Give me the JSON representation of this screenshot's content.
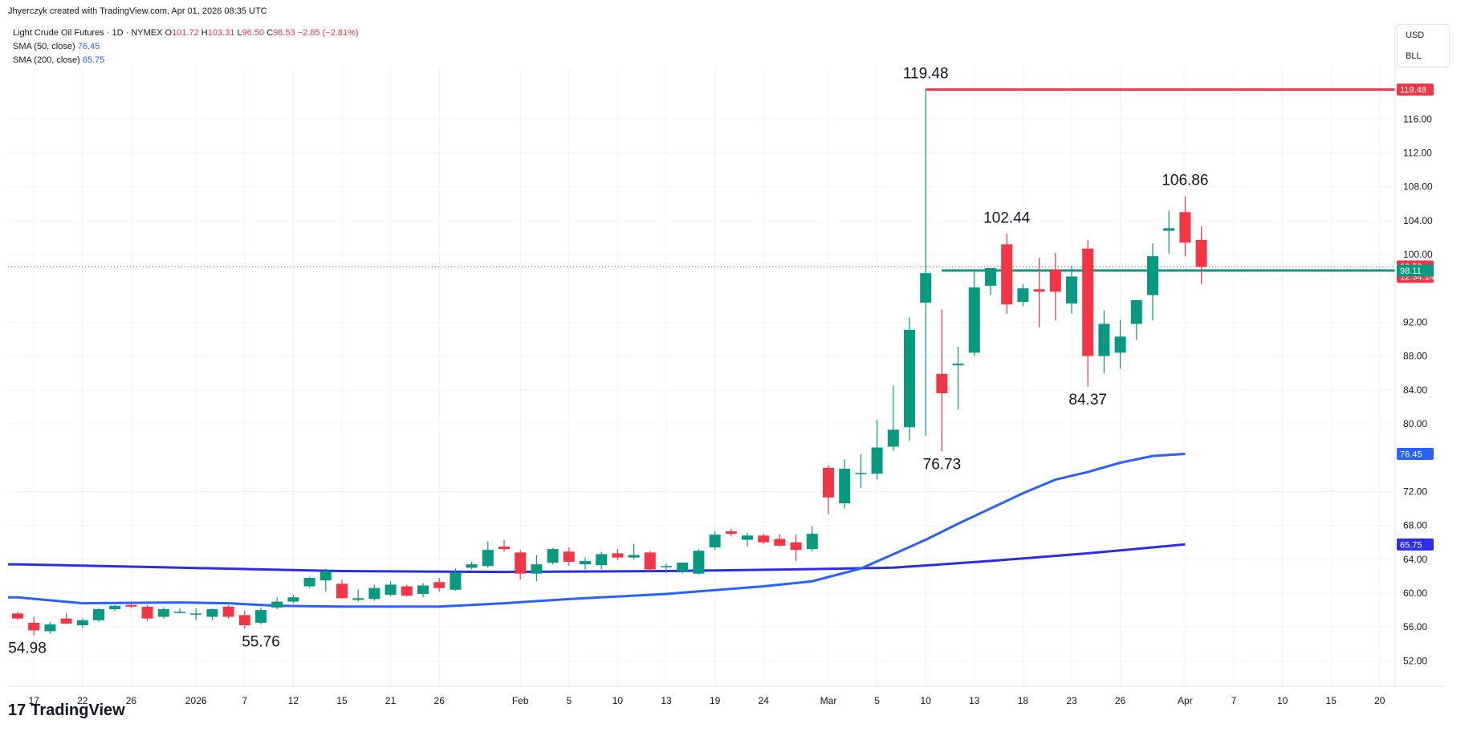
{
  "header": {
    "created": "Jhyerczyk created with TradingView.com, Apr 01, 2026 08:35 UTC"
  },
  "legend": {
    "symbol": "Light Crude Oil Futures · 1D · NYMEX",
    "o_label": "O",
    "o": "101.72",
    "h_label": "H",
    "h": "103.31",
    "l_label": "L",
    "l": "96.50",
    "c_label": "C",
    "c": "98.53",
    "change": "−2.85 (−2.81%)",
    "sma50_label": "SMA (50, close)",
    "sma50": "76.45",
    "sma200_label": "SMA (200, close)",
    "sma200": "65.75"
  },
  "currency": {
    "usd": "USD",
    "unit": "BLL"
  },
  "brand": {
    "logo": "17",
    "name": "TradingView"
  },
  "colors": {
    "up": "#089981",
    "down": "#f23645",
    "sma50": "#2962ff",
    "sma200": "#2b2ee8",
    "grid": "#f0f3fa"
  },
  "chart_data": {
    "type": "candlestick",
    "ylim": [
      49,
      122
    ],
    "y_ticks": [
      "116.00",
      "112.00",
      "108.00",
      "104.00",
      "100.00",
      "92.00",
      "88.00",
      "84.00",
      "80.00",
      "72.00",
      "68.00",
      "64.00",
      "60.00",
      "56.00",
      "52.00"
    ],
    "x_ticks": [
      {
        "label": "17",
        "i": 1
      },
      {
        "label": "22",
        "i": 4
      },
      {
        "label": "26",
        "i": 7
      },
      {
        "label": "2026",
        "i": 11
      },
      {
        "label": "7",
        "i": 14
      },
      {
        "label": "12",
        "i": 17
      },
      {
        "label": "15",
        "i": 20
      },
      {
        "label": "21",
        "i": 23
      },
      {
        "label": "26",
        "i": 26
      },
      {
        "label": "Feb",
        "i": 31
      },
      {
        "label": "5",
        "i": 34
      },
      {
        "label": "10",
        "i": 37
      },
      {
        "label": "13",
        "i": 40
      },
      {
        "label": "19",
        "i": 43
      },
      {
        "label": "24",
        "i": 46
      },
      {
        "label": "Mar",
        "i": 50
      },
      {
        "label": "5",
        "i": 53
      },
      {
        "label": "10",
        "i": 56
      },
      {
        "label": "13",
        "i": 59
      },
      {
        "label": "18",
        "i": 62
      },
      {
        "label": "23",
        "i": 65
      },
      {
        "label": "26",
        "i": 68
      },
      {
        "label": "Apr",
        "i": 72
      },
      {
        "label": "7",
        "i": 75
      },
      {
        "label": "10",
        "i": 78
      },
      {
        "label": "15",
        "i": 81
      },
      {
        "label": "20",
        "i": 84
      }
    ],
    "candles": [
      [
        57.6,
        57.8,
        56.8,
        57.0
      ],
      [
        56.5,
        57.2,
        55.0,
        55.6
      ],
      [
        55.5,
        56.6,
        55.2,
        56.3
      ],
      [
        57.0,
        57.6,
        56.4,
        56.4
      ],
      [
        56.2,
        57.0,
        55.9,
        56.8
      ],
      [
        56.8,
        58.2,
        56.6,
        58.1
      ],
      [
        58.1,
        58.6,
        57.9,
        58.5
      ],
      [
        58.6,
        58.8,
        58.2,
        58.4
      ],
      [
        58.4,
        58.6,
        56.7,
        57.0
      ],
      [
        57.2,
        58.3,
        57.0,
        58.1
      ],
      [
        57.8,
        58.2,
        57.6,
        57.8
      ],
      [
        57.6,
        58.2,
        56.8,
        57.6
      ],
      [
        57.2,
        58.2,
        56.8,
        58.1
      ],
      [
        58.4,
        58.6,
        57.0,
        57.2
      ],
      [
        57.4,
        57.9,
        55.8,
        56.2
      ],
      [
        56.5,
        58.3,
        56.3,
        58.0
      ],
      [
        58.3,
        59.5,
        58.1,
        59.0
      ],
      [
        59.0,
        59.8,
        58.8,
        59.5
      ],
      [
        60.8,
        61.9,
        60.6,
        61.8
      ],
      [
        61.5,
        62.9,
        60.2,
        62.6
      ],
      [
        61.1,
        61.6,
        59.4,
        59.4
      ],
      [
        59.2,
        60.4,
        59.0,
        59.4
      ],
      [
        59.3,
        61.0,
        59.1,
        60.6
      ],
      [
        59.8,
        61.4,
        59.6,
        61.0
      ],
      [
        60.8,
        61.0,
        59.6,
        59.7
      ],
      [
        59.9,
        61.2,
        59.5,
        60.9
      ],
      [
        61.3,
        61.8,
        60.2,
        60.6
      ],
      [
        60.4,
        62.9,
        60.3,
        62.4
      ],
      [
        63.0,
        63.7,
        62.8,
        63.4
      ],
      [
        63.2,
        66.1,
        63.0,
        65.1
      ],
      [
        65.5,
        66.3,
        64.9,
        65.2
      ],
      [
        64.8,
        65.1,
        61.6,
        62.3
      ],
      [
        62.3,
        64.5,
        61.4,
        63.4
      ],
      [
        63.6,
        65.3,
        63.4,
        65.2
      ],
      [
        64.9,
        65.4,
        63.2,
        63.7
      ],
      [
        63.4,
        64.2,
        62.8,
        63.8
      ],
      [
        63.3,
        64.9,
        62.8,
        64.6
      ],
      [
        64.7,
        65.2,
        63.9,
        64.2
      ],
      [
        64.2,
        65.8,
        64.0,
        64.5
      ],
      [
        64.8,
        65.0,
        62.6,
        62.8
      ],
      [
        63.1,
        63.5,
        62.4,
        63.2
      ],
      [
        62.6,
        63.6,
        62.3,
        63.6
      ],
      [
        62.3,
        65.2,
        62.2,
        65.0
      ],
      [
        65.4,
        67.3,
        65.1,
        66.9
      ],
      [
        67.3,
        67.6,
        66.7,
        67.0
      ],
      [
        66.3,
        67.1,
        65.5,
        66.8
      ],
      [
        66.8,
        67.0,
        65.8,
        66.0
      ],
      [
        66.4,
        67.0,
        65.5,
        65.6
      ],
      [
        66.0,
        66.9,
        63.8,
        65.1
      ],
      [
        65.2,
        67.9,
        64.9,
        67.0
      ],
      [
        74.8,
        75.1,
        69.3,
        71.3
      ],
      [
        70.6,
        75.8,
        70.0,
        74.7
      ],
      [
        74.2,
        76.4,
        72.4,
        74.2
      ],
      [
        74.1,
        80.5,
        73.4,
        77.2
      ],
      [
        77.3,
        84.5,
        76.8,
        79.3
      ],
      [
        79.6,
        92.6,
        78.0,
        91.1
      ],
      [
        94.3,
        119.48,
        78.6,
        97.8
      ],
      [
        85.9,
        93.5,
        76.73,
        83.6
      ],
      [
        86.9,
        89.1,
        81.7,
        87.1
      ],
      [
        88.4,
        98.1,
        88.0,
        96.1
      ],
      [
        96.3,
        98.3,
        95.2,
        98.4
      ],
      [
        101.2,
        102.44,
        93.0,
        94.1
      ],
      [
        94.4,
        96.5,
        93.9,
        96.0
      ],
      [
        95.9,
        99.6,
        91.4,
        95.6
      ],
      [
        98.2,
        100.2,
        92.2,
        95.6
      ],
      [
        94.2,
        98.7,
        93.0,
        97.4
      ],
      [
        100.7,
        101.7,
        84.37,
        88.0
      ],
      [
        88.0,
        93.4,
        86.0,
        91.8
      ],
      [
        88.4,
        92.3,
        86.5,
        90.3
      ],
      [
        91.8,
        94.0,
        89.9,
        94.6
      ],
      [
        95.2,
        101.3,
        92.2,
        99.8
      ],
      [
        102.8,
        105.2,
        100.1,
        103.1
      ],
      [
        105.0,
        106.86,
        99.8,
        101.4
      ],
      [
        101.72,
        103.31,
        96.5,
        98.53
      ]
    ],
    "sma50": [
      [
        0,
        59.5
      ],
      [
        4,
        58.8
      ],
      [
        10,
        58.9
      ],
      [
        13,
        58.8
      ],
      [
        16,
        58.5
      ],
      [
        20,
        58.4
      ],
      [
        26,
        58.4
      ],
      [
        30,
        58.8
      ],
      [
        34,
        59.3
      ],
      [
        40,
        59.9
      ],
      [
        46,
        60.8
      ],
      [
        49,
        61.4
      ],
      [
        52,
        62.9
      ],
      [
        54,
        64.6
      ],
      [
        56,
        66.3
      ],
      [
        58,
        68.2
      ],
      [
        60,
        70.0
      ],
      [
        62,
        71.8
      ],
      [
        64,
        73.4
      ],
      [
        66,
        74.3
      ],
      [
        68,
        75.4
      ],
      [
        70,
        76.2
      ],
      [
        72,
        76.45
      ]
    ],
    "sma200": [
      [
        0,
        63.4
      ],
      [
        10,
        63.0
      ],
      [
        20,
        62.6
      ],
      [
        30,
        62.5
      ],
      [
        40,
        62.6
      ],
      [
        48,
        62.8
      ],
      [
        54,
        63.0
      ],
      [
        60,
        63.8
      ],
      [
        66,
        64.7
      ],
      [
        72,
        65.75
      ]
    ],
    "price_line": 98.53,
    "h_line": 98.11,
    "max_line": 119.48,
    "annotations": [
      {
        "label": "119.48",
        "i": 56,
        "price": 119.48,
        "pos": "above"
      },
      {
        "label": "102.44",
        "i": 61,
        "price": 102.44,
        "pos": "above"
      },
      {
        "label": "106.86",
        "i": 72,
        "price": 106.86,
        "pos": "above"
      },
      {
        "label": "84.37",
        "i": 66,
        "price": 84.37,
        "pos": "below"
      },
      {
        "label": "76.73",
        "i": 57,
        "price": 76.73,
        "pos": "below"
      },
      {
        "label": "54.98",
        "i": 0,
        "price": 55.0,
        "pos": "below"
      },
      {
        "label": "55.76",
        "i": 15,
        "price": 55.76,
        "pos": "below"
      }
    ],
    "badges": [
      {
        "label": "119.48",
        "price": 119.48,
        "color": "#f23645"
      },
      {
        "label": "98.53",
        "sub": "12:34:14",
        "price": 98.53,
        "color": "#f23645"
      },
      {
        "label": "98.11",
        "price": 98.11,
        "color": "#089981"
      },
      {
        "label": "76.45",
        "price": 76.45,
        "color": "#2962ff"
      },
      {
        "label": "65.75",
        "price": 65.75,
        "color": "#2b2ee8"
      }
    ]
  }
}
